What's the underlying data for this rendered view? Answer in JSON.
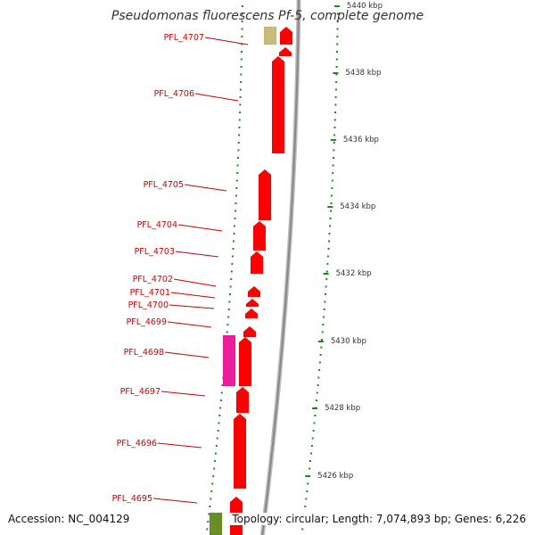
{
  "title": "Pseudomonas fluorescens Pf-5, complete genome",
  "accession": "Accession: NC_004129",
  "stats": "Topology: circular; Length: 7,074,893 bp; Genes: 6,226",
  "colors": {
    "gene_forward": "#ff0000",
    "gene_pink": "#ee1e9a",
    "gene_olive": "#c7bc79",
    "gene_green": "#6a8e23",
    "label": "#cc0000",
    "tick": "#1a8a1a",
    "backbone": "#999999"
  },
  "scale": [
    {
      "label": "5440 kbp"
    },
    {
      "label": "5438 kbp"
    },
    {
      "label": "5436 kbp"
    },
    {
      "label": "5434 kbp"
    },
    {
      "label": "5432 kbp"
    },
    {
      "label": "5430 kbp"
    },
    {
      "label": "5428 kbp"
    },
    {
      "label": "5426 kbp"
    }
  ],
  "gene_labels": [
    {
      "name": "PFL_4707"
    },
    {
      "name": "PFL_4706"
    },
    {
      "name": "PFL_4705"
    },
    {
      "name": "PFL_4704"
    },
    {
      "name": "PFL_4703"
    },
    {
      "name": "PFL_4702"
    },
    {
      "name": "PFL_4701"
    },
    {
      "name": "PFL_4700"
    },
    {
      "name": "PFL_4699"
    },
    {
      "name": "PFL_4698"
    },
    {
      "name": "PFL_4697"
    },
    {
      "name": "PFL_4696"
    },
    {
      "name": "PFL_4695"
    }
  ]
}
